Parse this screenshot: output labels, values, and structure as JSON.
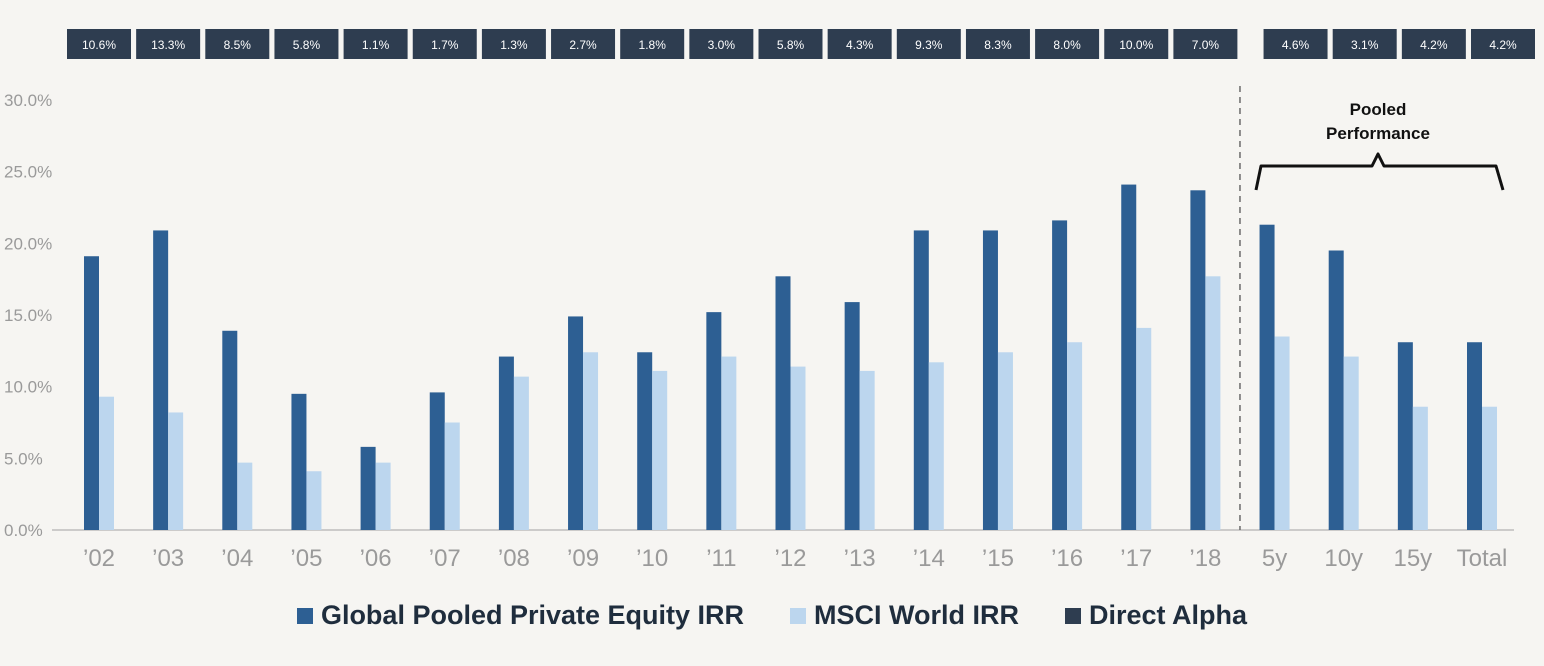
{
  "colors": {
    "pe": "#2d5f93",
    "msci": "#bcd6ee",
    "alpha_box": "#2e3d50",
    "alpha_text": "#ffffff",
    "axis_text": "#9a9a9a",
    "background": "#f6f5f2"
  },
  "chart_data": {
    "type": "bar",
    "categories": [
      "'02",
      "'03",
      "'04",
      "'05",
      "'06",
      "'07",
      "'08",
      "'09",
      "'10",
      "'11",
      "'12",
      "'13",
      "'14",
      "'15",
      "'16",
      "'17",
      "'18",
      "5y",
      "10y",
      "15y",
      "Total"
    ],
    "series": [
      {
        "name": "Global Pooled Private Equity IRR",
        "values": [
          19.1,
          20.9,
          13.9,
          9.5,
          5.8,
          9.6,
          12.1,
          14.9,
          12.4,
          15.2,
          17.7,
          15.9,
          20.9,
          20.9,
          21.6,
          24.1,
          23.7,
          21.3,
          19.5,
          13.1,
          13.1
        ]
      },
      {
        "name": "MSCI World IRR",
        "values": [
          9.3,
          8.2,
          4.7,
          4.1,
          4.7,
          7.5,
          10.7,
          12.4,
          11.1,
          12.1,
          11.4,
          11.1,
          11.7,
          12.4,
          13.1,
          14.1,
          17.7,
          13.5,
          12.1,
          8.6,
          8.6
        ]
      }
    ],
    "direct_alpha": {
      "name": "Direct Alpha",
      "labels": [
        "10.6%",
        "13.3%",
        "8.5%",
        "5.8%",
        "1.1%",
        "1.7%",
        "1.3%",
        "2.7%",
        "1.8%",
        "3.0%",
        "5.8%",
        "4.3%",
        "9.3%",
        "8.3%",
        "8.0%",
        "10.0%",
        "7.0%",
        "4.6%",
        "3.1%",
        "4.2%",
        "4.2%"
      ]
    },
    "yticks": [
      "0.0%",
      "5.0%",
      "10.0%",
      "15.0%",
      "20.0%",
      "25.0%",
      "30.0%"
    ],
    "ylim": [
      0,
      30
    ],
    "annotation": [
      "Pooled",
      "Performance"
    ],
    "pooled_start_index": 17,
    "grid": false,
    "legend_position": "bottom"
  },
  "legend": {
    "pe_label": "Global Pooled Private Equity IRR",
    "msci_label": "MSCI World IRR",
    "alpha_label": "Direct Alpha"
  }
}
